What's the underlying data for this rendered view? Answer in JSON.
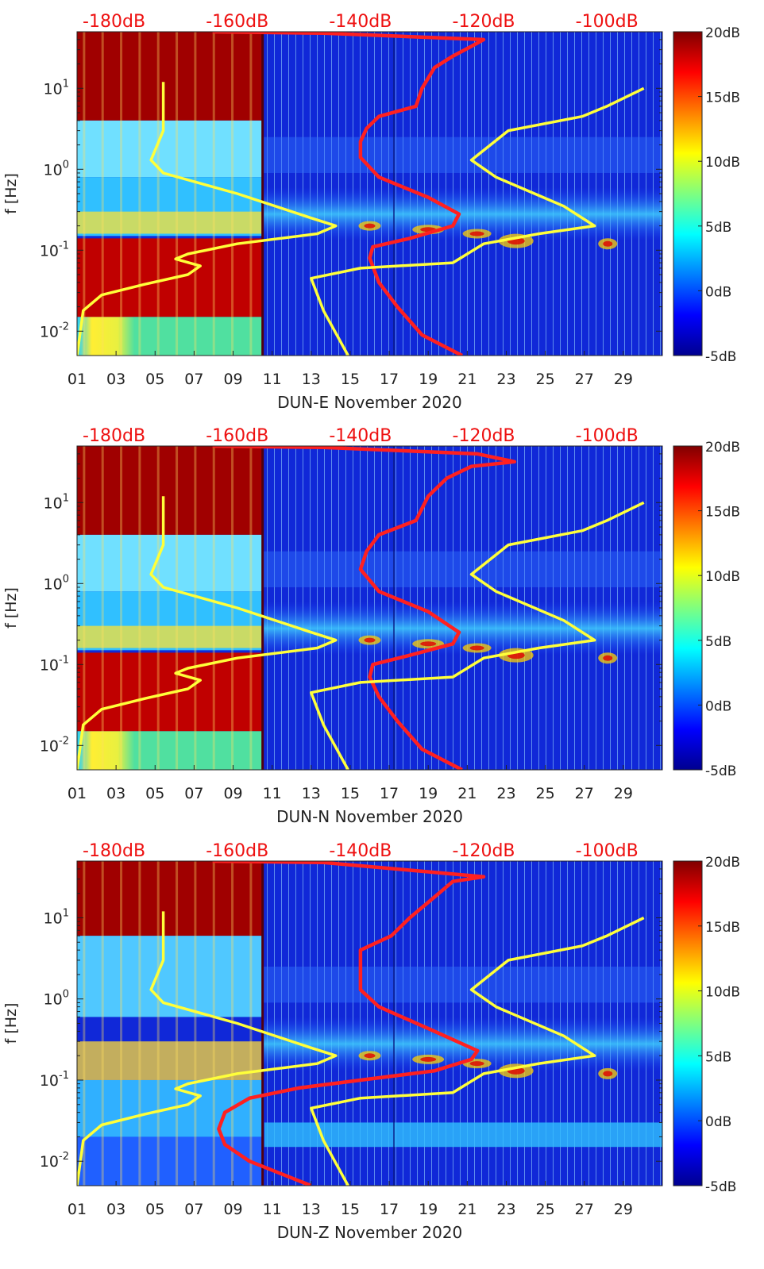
{
  "chart_data": [
    {
      "type": "heatmap",
      "xlabel": "DUN-E November 2020",
      "ylabel": "f [Hz]",
      "x_ticks": [
        "01",
        "03",
        "05",
        "07",
        "09",
        "11",
        "13",
        "15",
        "17",
        "19",
        "21",
        "23",
        "25",
        "27",
        "29"
      ],
      "y_ticks": [
        "10^-2",
        "10^-1",
        "10^0",
        "10^1"
      ],
      "y_range_hz": [
        0.005,
        50
      ],
      "x_range_day": [
        1,
        31
      ],
      "log_y": true,
      "top_ticks": [
        "-180dB",
        "-160dB",
        "-140dB",
        "-120dB",
        "-100dB"
      ],
      "top_range_db": [
        -186,
        -91
      ],
      "colorbar": {
        "ticks": [
          "20dB",
          "15dB",
          "10dB",
          "5dB",
          "0dB",
          "-5dB"
        ],
        "range": [
          -5,
          20
        ],
        "colormap": "jet"
      },
      "series": [
        {
          "color": "#ff2020",
          "points": [
            [
              -123.5,
              0.005
            ],
            [
              -130,
              0.009
            ],
            [
              -134,
              0.02
            ],
            [
              -137,
              0.04
            ],
            [
              -138.5,
              0.08
            ],
            [
              -138,
              0.11
            ],
            [
              -132,
              0.14
            ],
            [
              -125,
              0.2
            ],
            [
              -124,
              0.28
            ],
            [
              -129,
              0.45
            ],
            [
              -137,
              0.8
            ],
            [
              -140,
              1.4
            ],
            [
              -140,
              2.2
            ],
            [
              -139,
              3.2
            ],
            [
              -137,
              4.5
            ],
            [
              -131,
              6
            ],
            [
              -130,
              10
            ],
            [
              -128,
              18
            ],
            [
              -125,
              25
            ],
            [
              -122,
              33
            ],
            [
              -120,
              40
            ],
            [
              -146,
              48
            ],
            [
              -164,
              50
            ]
          ]
        },
        {
          "color": "#ffff3a",
          "points": [
            [
              -186,
              0.005
            ],
            [
              -185,
              0.018
            ],
            [
              -182,
              0.028
            ],
            [
              -175,
              0.038
            ],
            [
              -168,
              0.05
            ],
            [
              -166,
              0.064
            ],
            [
              -170,
              0.078
            ],
            [
              -168,
              0.09
            ],
            [
              -160,
              0.12
            ],
            [
              -147,
              0.16
            ],
            [
              -144,
              0.2
            ],
            [
              -148,
              0.25
            ],
            [
              -160,
              0.5
            ],
            [
              -172,
              0.9
            ],
            [
              -174,
              1.3
            ],
            [
              -172,
              3
            ],
            [
              -172,
              6
            ],
            [
              -172,
              12
            ]
          ]
        },
        {
          "color": "#ffff3a",
          "points": [
            [
              -142,
              0.005
            ],
            [
              -146,
              0.018
            ],
            [
              -148,
              0.045
            ],
            [
              -140,
              0.06
            ],
            [
              -125,
              0.07
            ],
            [
              -120,
              0.12
            ],
            [
              -111,
              0.16
            ],
            [
              -102,
              0.2
            ],
            [
              -107,
              0.35
            ],
            [
              -118,
              0.8
            ],
            [
              -122,
              1.3
            ],
            [
              -116,
              3
            ],
            [
              -104,
              4.5
            ],
            [
              -100,
              6
            ],
            [
              -94,
              10
            ]
          ]
        }
      ]
    },
    {
      "type": "heatmap",
      "xlabel": "DUN-N November 2020",
      "ylabel": "f [Hz]",
      "x_ticks": [
        "01",
        "03",
        "05",
        "07",
        "09",
        "11",
        "13",
        "15",
        "17",
        "19",
        "21",
        "23",
        "25",
        "27",
        "29"
      ],
      "y_ticks": [
        "10^-2",
        "10^-1",
        "10^0",
        "10^1"
      ],
      "y_range_hz": [
        0.005,
        50
      ],
      "x_range_day": [
        1,
        31
      ],
      "log_y": true,
      "top_ticks": [
        "-180dB",
        "-160dB",
        "-140dB",
        "-120dB",
        "-100dB"
      ],
      "top_range_db": [
        -186,
        -91
      ],
      "colorbar": {
        "ticks": [
          "20dB",
          "15dB",
          "10dB",
          "5dB",
          "0dB",
          "-5dB"
        ],
        "range": [
          -5,
          20
        ],
        "colormap": "jet"
      },
      "series": [
        {
          "color": "#ff2020",
          "points": [
            [
              -123.5,
              0.005
            ],
            [
              -130,
              0.009
            ],
            [
              -134,
              0.02
            ],
            [
              -137,
              0.04
            ],
            [
              -138.5,
              0.07
            ],
            [
              -138,
              0.1
            ],
            [
              -132,
              0.13
            ],
            [
              -125,
              0.18
            ],
            [
              -124,
              0.25
            ],
            [
              -129,
              0.45
            ],
            [
              -137,
              0.8
            ],
            [
              -140,
              1.5
            ],
            [
              -139,
              2.5
            ],
            [
              -137,
              4
            ],
            [
              -131,
              6
            ],
            [
              -129,
              12
            ],
            [
              -126,
              20
            ],
            [
              -122,
              28
            ],
            [
              -115,
              32
            ],
            [
              -121,
              40
            ],
            [
              -146,
              48
            ],
            [
              -164,
              50
            ]
          ]
        },
        {
          "color": "#ffff3a",
          "points": [
            [
              -186,
              0.005
            ],
            [
              -185,
              0.018
            ],
            [
              -182,
              0.028
            ],
            [
              -175,
              0.038
            ],
            [
              -168,
              0.05
            ],
            [
              -166,
              0.064
            ],
            [
              -170,
              0.078
            ],
            [
              -168,
              0.09
            ],
            [
              -160,
              0.12
            ],
            [
              -147,
              0.16
            ],
            [
              -144,
              0.2
            ],
            [
              -148,
              0.25
            ],
            [
              -160,
              0.5
            ],
            [
              -172,
              0.9
            ],
            [
              -174,
              1.3
            ],
            [
              -172,
              3
            ],
            [
              -172,
              6
            ],
            [
              -172,
              12
            ]
          ]
        },
        {
          "color": "#ffff3a",
          "points": [
            [
              -142,
              0.005
            ],
            [
              -146,
              0.018
            ],
            [
              -148,
              0.045
            ],
            [
              -140,
              0.06
            ],
            [
              -125,
              0.07
            ],
            [
              -120,
              0.12
            ],
            [
              -111,
              0.16
            ],
            [
              -102,
              0.2
            ],
            [
              -107,
              0.35
            ],
            [
              -118,
              0.8
            ],
            [
              -122,
              1.3
            ],
            [
              -116,
              3
            ],
            [
              -104,
              4.5
            ],
            [
              -100,
              6
            ],
            [
              -94,
              10
            ]
          ]
        }
      ]
    },
    {
      "type": "heatmap",
      "xlabel": "DUN-Z November 2020",
      "ylabel": "f [Hz]",
      "x_ticks": [
        "01",
        "03",
        "05",
        "07",
        "09",
        "11",
        "13",
        "15",
        "17",
        "19",
        "21",
        "23",
        "25",
        "27",
        "29"
      ],
      "y_ticks": [
        "10^-2",
        "10^-1",
        "10^0",
        "10^1"
      ],
      "y_range_hz": [
        0.005,
        50
      ],
      "x_range_day": [
        1,
        31
      ],
      "log_y": true,
      "top_ticks": [
        "-180dB",
        "-160dB",
        "-140dB",
        "-120dB",
        "-100dB"
      ],
      "top_range_db": [
        -186,
        -91
      ],
      "colorbar": {
        "ticks": [
          "20dB",
          "15dB",
          "10dB",
          "5dB",
          "0dB",
          "-5dB"
        ],
        "range": [
          -5,
          20
        ],
        "colormap": "jet"
      },
      "series": [
        {
          "color": "#ff2020",
          "points": [
            [
              -148,
              0.005
            ],
            [
              -158,
              0.01
            ],
            [
              -162,
              0.016
            ],
            [
              -163,
              0.025
            ],
            [
              -162,
              0.04
            ],
            [
              -158,
              0.06
            ],
            [
              -150,
              0.08
            ],
            [
              -140,
              0.1
            ],
            [
              -128,
              0.13
            ],
            [
              -122,
              0.18
            ],
            [
              -121,
              0.23
            ],
            [
              -128,
              0.4
            ],
            [
              -137,
              0.8
            ],
            [
              -140,
              1.3
            ],
            [
              -140,
              2.5
            ],
            [
              -140,
              4
            ],
            [
              -135,
              6
            ],
            [
              -132,
              10
            ],
            [
              -128,
              18
            ],
            [
              -125,
              28
            ],
            [
              -120,
              32
            ],
            [
              -146,
              48
            ],
            [
              -164,
              50
            ]
          ]
        },
        {
          "color": "#ffff3a",
          "points": [
            [
              -186,
              0.005
            ],
            [
              -185,
              0.018
            ],
            [
              -182,
              0.028
            ],
            [
              -175,
              0.038
            ],
            [
              -168,
              0.05
            ],
            [
              -166,
              0.064
            ],
            [
              -170,
              0.078
            ],
            [
              -168,
              0.09
            ],
            [
              -160,
              0.12
            ],
            [
              -147,
              0.16
            ],
            [
              -144,
              0.2
            ],
            [
              -148,
              0.25
            ],
            [
              -160,
              0.5
            ],
            [
              -172,
              0.9
            ],
            [
              -174,
              1.3
            ],
            [
              -172,
              3
            ],
            [
              -172,
              6
            ],
            [
              -172,
              12
            ]
          ]
        },
        {
          "color": "#ffff3a",
          "points": [
            [
              -142,
              0.005
            ],
            [
              -146,
              0.018
            ],
            [
              -148,
              0.045
            ],
            [
              -140,
              0.06
            ],
            [
              -125,
              0.07
            ],
            [
              -120,
              0.12
            ],
            [
              -111,
              0.16
            ],
            [
              -102,
              0.2
            ],
            [
              -107,
              0.35
            ],
            [
              -118,
              0.8
            ],
            [
              -122,
              1.3
            ],
            [
              -116,
              3
            ],
            [
              -104,
              4.5
            ],
            [
              -100,
              6
            ],
            [
              -94,
              10
            ]
          ]
        }
      ]
    }
  ]
}
